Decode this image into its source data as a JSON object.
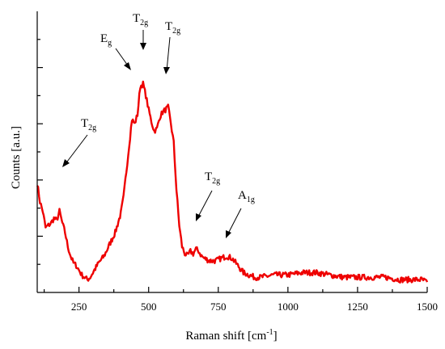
{
  "chart_data": {
    "type": "line",
    "xlabel": "Raman shift [cm",
    "xlabel_sup": "-1",
    "xlabel_close": "]",
    "ylabel": "Counts [a.u.]",
    "xlim": [
      100,
      1500
    ],
    "ylim": [
      0,
      100
    ],
    "x_ticks": [
      250,
      500,
      750,
      1000,
      1250,
      1500
    ],
    "x_tick_labels": [
      "250",
      "500",
      "750",
      "1000",
      "1250",
      "1500"
    ],
    "y_tick_values": [
      10,
      20,
      30,
      40,
      50,
      60,
      70,
      80,
      90
    ],
    "y_major_ticks": [
      20,
      40,
      60,
      80
    ],
    "grid": false,
    "line_color": "#ee0000",
    "series": [
      {
        "x": [
          100,
          110,
          120,
          130,
          140,
          150,
          160,
          170,
          180,
          190,
          200,
          210,
          220,
          230,
          240,
          250,
          260,
          270,
          280,
          290,
          300,
          320,
          340,
          360,
          380,
          400,
          410,
          420,
          430,
          440,
          450,
          460,
          470,
          480,
          490,
          500,
          510,
          520,
          530,
          540,
          550,
          560,
          570,
          580,
          590,
          600,
          610,
          620,
          630,
          640,
          650,
          660,
          670,
          680,
          690,
          700,
          720,
          740,
          760,
          780,
          800,
          820,
          840,
          860,
          880,
          900,
          950,
          1000,
          1050,
          1100,
          1150,
          1200,
          1250,
          1300,
          1350,
          1400,
          1450,
          1480,
          1500
        ],
        "y": [
          43,
          35,
          31,
          24,
          25,
          26,
          28,
          27,
          31,
          26,
          22,
          16,
          12,
          9,
          8,
          6,
          4,
          3,
          2,
          3,
          5,
          9,
          12,
          17,
          22,
          30,
          37,
          48,
          59,
          70,
          68,
          72,
          84,
          85,
          80,
          74,
          69,
          65,
          66,
          71,
          73,
          74,
          75,
          68,
          60,
          40,
          25,
          16,
          13,
          12,
          14,
          13,
          15,
          14,
          12,
          11,
          10,
          10,
          11,
          12,
          11,
          8,
          5,
          4,
          3,
          3,
          4,
          4,
          5,
          5,
          4,
          3,
          3,
          3,
          3,
          2,
          2,
          2,
          1
        ]
      }
    ],
    "peak_labels": [
      {
        "main": "T",
        "sub": "2g",
        "x": 180
      },
      {
        "main": "E",
        "sub": "g",
        "x": 440
      },
      {
        "main": "T",
        "sub": "2g",
        "x": 480
      },
      {
        "main": "T",
        "sub": "2g",
        "x": 565
      },
      {
        "main": "T",
        "sub": "2g",
        "x": 665
      },
      {
        "main": "A",
        "sub": "1g",
        "x": 760
      }
    ]
  }
}
